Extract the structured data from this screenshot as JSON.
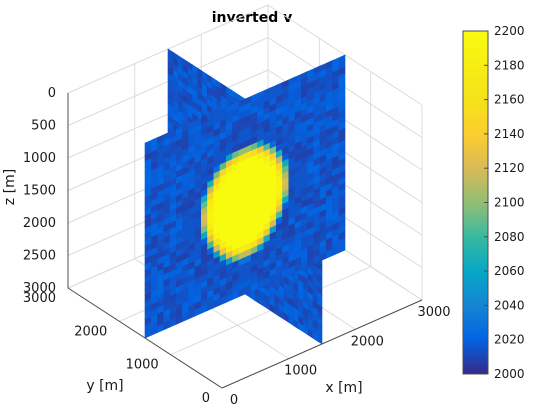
{
  "chart_data": {
    "type": "heatmap",
    "title": "inverted v",
    "xlabel": "x [m]",
    "ylabel": "y [m]",
    "zlabel": "z [m]",
    "x_ticks": [
      "0",
      "1000",
      "2000",
      "3000"
    ],
    "y_ticks": [
      "0",
      "1000",
      "2000",
      "3000"
    ],
    "z_ticks": [
      "0",
      "500",
      "1000",
      "1500",
      "2000",
      "2500",
      "3000"
    ],
    "xlim": [
      0,
      3000
    ],
    "ylim": [
      0,
      3000
    ],
    "zlim": [
      0,
      3000
    ],
    "z_reversed": true,
    "slices": "two orthogonal vertical slices through the model centre (x = 1500 m, y = 1500 m)",
    "anomaly": {
      "shape": "inverted-v (heart-shaped) high-velocity body",
      "peak_value": 2200,
      "background_value": 2015,
      "center_x": 1500,
      "center_y": 1500,
      "z_top": 700,
      "z_bottom": 2500
    },
    "colorbar": {
      "colormap": "parula",
      "range": [
        2000,
        2200
      ],
      "ticks": [
        "2000",
        "2020",
        "2040",
        "2060",
        "2080",
        "2100",
        "2120",
        "2140",
        "2160",
        "2180",
        "2200"
      ]
    },
    "grid": true
  }
}
